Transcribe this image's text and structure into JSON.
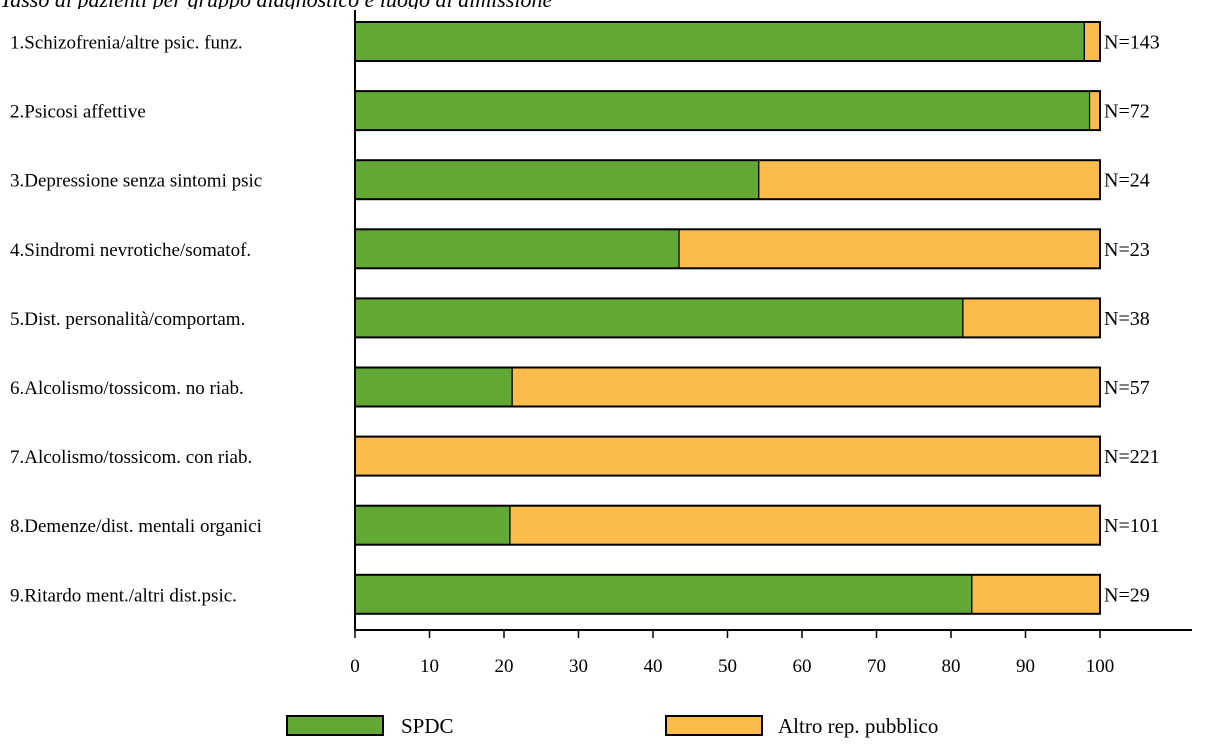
{
  "chart_data": {
    "type": "bar",
    "orientation": "horizontal",
    "stacked": true,
    "title": "Tasso di pazienti per gruppo diagnostico e luogo di dimissione",
    "categories": [
      "1.Schizofrenia/altre psic. funz.",
      "2.Psicosi affettive",
      "3.Depressione senza sintomi psic",
      "4.Sindromi nevrotiche/somatof.",
      "5.Dist. personalità/comportam.",
      "6.Alcolismo/tossicom. no riab.",
      "7.Alcolismo/tossicom. con riab.",
      "8.Demenze/dist. mentali organici",
      "9.Ritardo ment./altri dist.psic."
    ],
    "series": [
      {
        "name": "SPDC",
        "values": [
          97.9,
          98.6,
          54.2,
          43.5,
          81.6,
          21.1,
          0,
          20.8,
          82.8
        ]
      },
      {
        "name": "Altro rep. pubblico",
        "values": [
          2.1,
          1.4,
          45.8,
          56.5,
          18.4,
          78.9,
          100,
          79.2,
          17.2
        ]
      }
    ],
    "bar_annotations": [
      "N=143",
      "N=72",
      "N=24",
      "N=23",
      "N=38",
      "N=57",
      "N=221",
      "N=101",
      "N=29"
    ],
    "xlim": [
      0,
      100
    ],
    "xticks": [
      0,
      10,
      20,
      30,
      40,
      50,
      60,
      70,
      80,
      90,
      100
    ],
    "xlabel": "",
    "ylabel": "",
    "grid": false,
    "legend_position": "bottom",
    "colors": {
      "SPDC": "#62a834",
      "Altro rep. pubblico": "#fbbc4b",
      "outline": "#000000"
    }
  }
}
